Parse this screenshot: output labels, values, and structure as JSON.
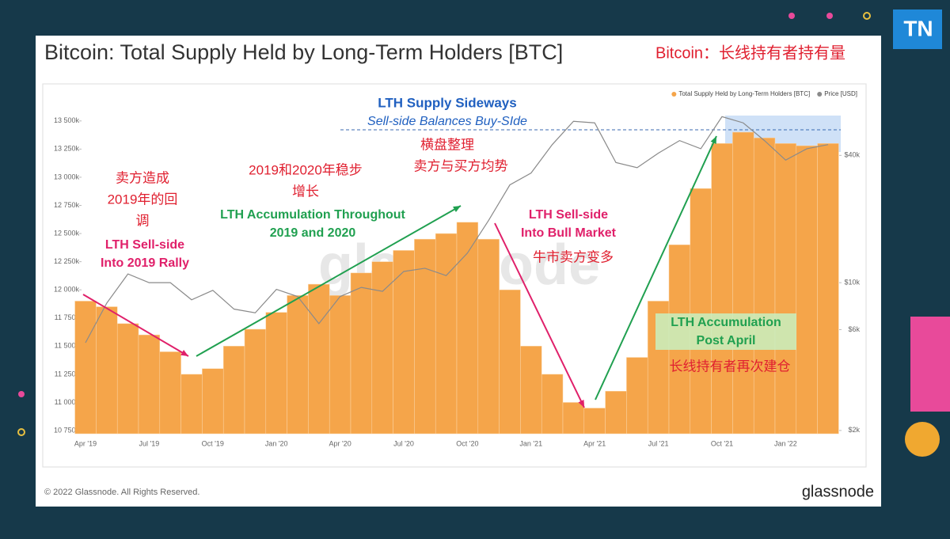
{
  "header": {
    "title": "Bitcoin: Total Supply Held by Long-Term Holders [BTC]",
    "subtitle": "Bitcoin：长线持有者持有量",
    "logo": "TN"
  },
  "footer": {
    "copyright": "© 2022 Glassnode. All Rights Reserved.",
    "brand": "glassnode",
    "watermark": "glassnode"
  },
  "chart_data": {
    "type": "bar-line",
    "categories": [
      "Apr '19",
      null,
      null,
      "Jul '19",
      null,
      null,
      "Oct '19",
      null,
      null,
      "Jan '20",
      null,
      null,
      "Apr '20",
      null,
      null,
      "Jul '20",
      null,
      null,
      "Oct '20",
      null,
      null,
      "Jan '21",
      null,
      null,
      "Apr '21",
      null,
      null,
      "Jul '21",
      null,
      null,
      "Oct '21",
      null,
      null,
      "Jan '22",
      null,
      null
    ],
    "series": [
      {
        "name": "Total Supply Held by Long-Term Holders [BTC]",
        "color": "#f5a54a",
        "values": [
          11900000,
          11850000,
          11700000,
          11600000,
          11450000,
          11250000,
          11300000,
          11500000,
          11650000,
          11800000,
          11950000,
          12050000,
          11950000,
          12150000,
          12250000,
          12350000,
          12450000,
          12500000,
          12600000,
          12450000,
          12000000,
          11500000,
          11250000,
          11000000,
          10950000,
          11100000,
          11400000,
          11900000,
          12400000,
          12900000,
          13300000,
          13400000,
          13350000,
          13300000,
          13280000,
          13300000
        ]
      },
      {
        "name": "Price [USD]",
        "color": "#8a8a8a",
        "axis": "y2",
        "values": [
          5200,
          8000,
          11000,
          10000,
          10000,
          8300,
          9200,
          7500,
          7200,
          9300,
          8600,
          6400,
          8600,
          9500,
          9100,
          11300,
          11700,
          10800,
          13800,
          19700,
          29000,
          33000,
          45000,
          58000,
          57000,
          37000,
          35000,
          41000,
          47000,
          43000,
          61000,
          57000,
          47000,
          38000,
          43000,
          45000
        ]
      }
    ],
    "ylim": [
      10722000,
      13590000
    ],
    "yticks": [
      {
        "value": 10750000,
        "label": "10 750k"
      },
      {
        "value": 11000000,
        "label": "11 000k"
      },
      {
        "value": 11250000,
        "label": "11 250k"
      },
      {
        "value": 11500000,
        "label": "11 500k"
      },
      {
        "value": 11750000,
        "label": "11 750k"
      },
      {
        "value": 12000000,
        "label": "12 000k"
      },
      {
        "value": 12250000,
        "label": "12 250k"
      },
      {
        "value": 12500000,
        "label": "12 500k"
      },
      {
        "value": 12750000,
        "label": "12 750k"
      },
      {
        "value": 13000000,
        "label": "13 000k"
      },
      {
        "value": 13250000,
        "label": "13 250k"
      },
      {
        "value": 13500000,
        "label": "13 500k"
      }
    ],
    "y2lim": [
      1930,
      65000
    ],
    "y2log": true,
    "y2ticks": [
      {
        "value": 2000,
        "label": "$2k"
      },
      {
        "value": 6000,
        "label": "$6k"
      },
      {
        "value": 10000,
        "label": "$10k"
      },
      {
        "value": 40000,
        "label": "$40k"
      }
    ],
    "grid": false,
    "legend": "top-right",
    "annotations": [
      "LTH Supply Sideways",
      "Sell-side Balances Buy-SIde",
      "横盘整理",
      "卖方与买方均势",
      "2019和2020年稳步",
      "增长",
      "卖方造成",
      "2019年的回",
      "调",
      "LTH Sell-side",
      "Into 2019 Rally",
      "LTH Accumulation Throughout",
      "2019 and 2020",
      "LTH Sell-side",
      "Into Bull Market",
      "牛市卖方变多",
      "LTH Accumulation",
      "Post April",
      "长线持有者再次建仓"
    ]
  }
}
